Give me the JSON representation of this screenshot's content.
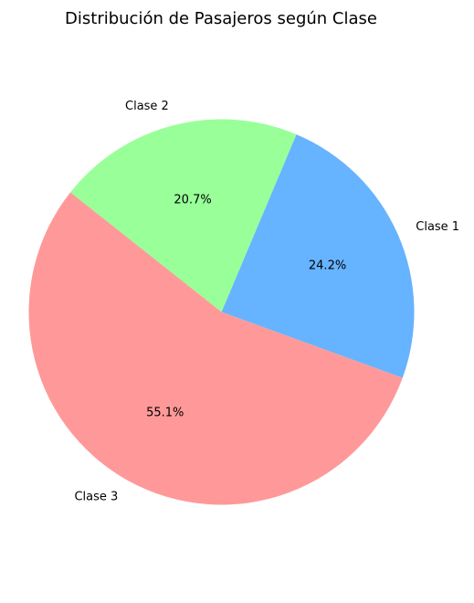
{
  "chart_data": {
    "type": "pie",
    "title": "Distribución de Pasajeros según Clase",
    "slices": [
      {
        "label": "Clase 1",
        "value": 24.2,
        "pct_text": "24.2%",
        "color": "#66b3ff"
      },
      {
        "label": "Clase 2",
        "value": 20.7,
        "pct_text": "20.7%",
        "color": "#99ff99"
      },
      {
        "label": "Clase 3",
        "value": 55.1,
        "pct_text": "55.1%",
        "color": "#ff9999"
      }
    ],
    "start_angle_deg": 340,
    "direction": "counterclockwise",
    "legend": "none"
  }
}
